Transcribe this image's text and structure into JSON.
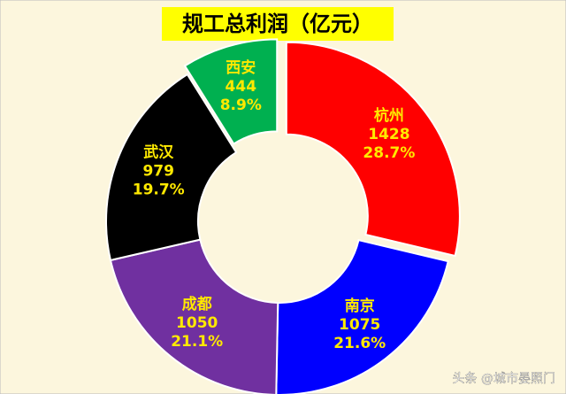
{
  "chart_data": {
    "type": "donut",
    "title": "规工总利润（亿元）",
    "categories": [
      "杭州",
      "南京",
      "成都",
      "武汉",
      "西安"
    ],
    "values": [
      1428,
      1075,
      1050,
      979,
      444
    ],
    "percent_labels": [
      "28.7%",
      "21.6%",
      "21.1%",
      "19.7%",
      "8.9%"
    ],
    "colors": [
      "#ff0000",
      "#0000ff",
      "#7030a0",
      "#000000",
      "#00b050"
    ],
    "explode": [
      true,
      false,
      false,
      false,
      true
    ],
    "footer": "头条 @城市晏照门"
  }
}
